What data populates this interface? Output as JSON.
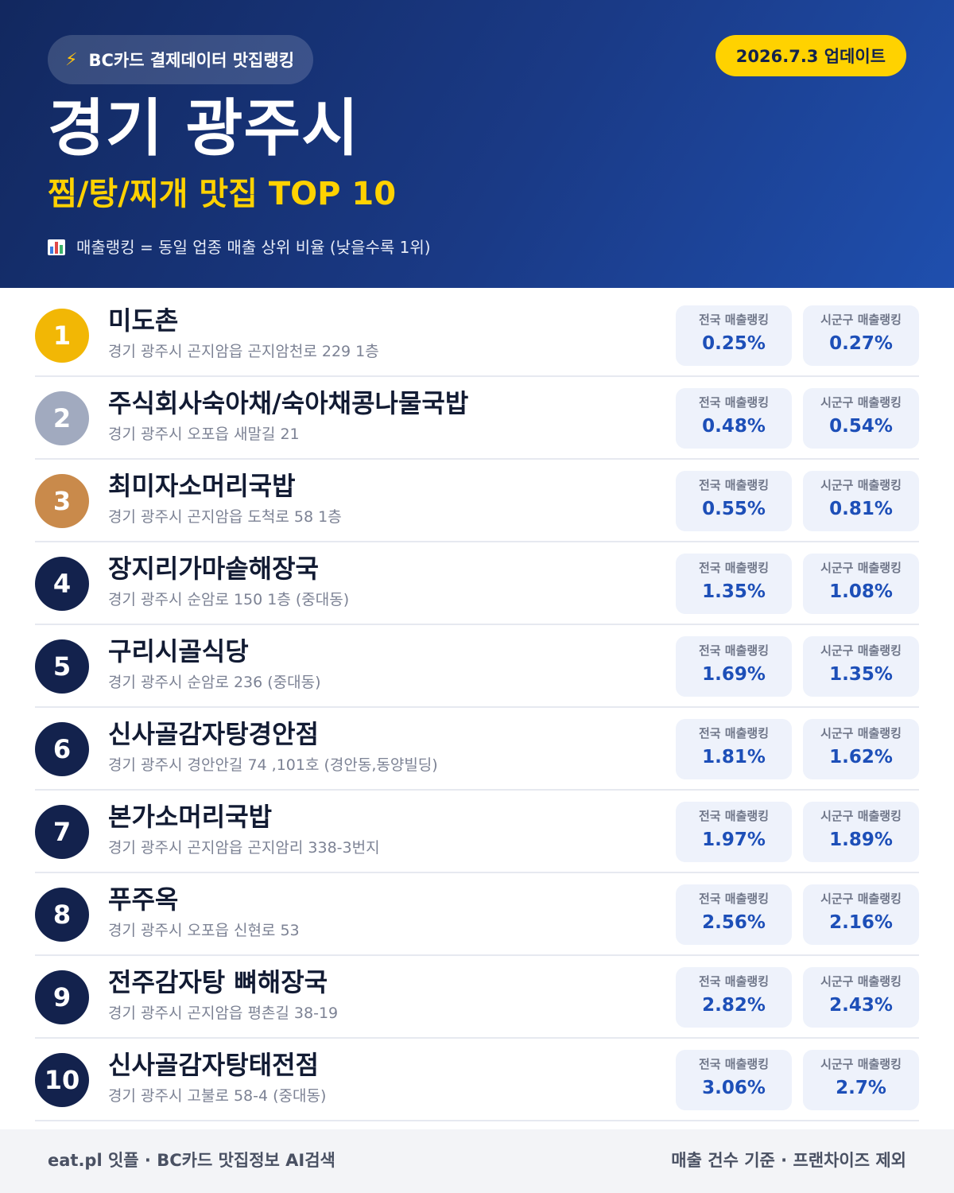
{
  "header": {
    "source_label": "BC카드 결제데이터 맛집랭킹",
    "source_icon": "lightning-bolt-icon",
    "update_label": "2026.7.3 업데이트",
    "region": "경기 광주시",
    "category_title": "찜/탕/찌개 맛집 TOP 10",
    "legend_icon": "bar-chart-icon",
    "legend_text": "매출랭킹 = 동일 업종 매출 상위 비율 (낮을수록 1위)"
  },
  "colors": {
    "header_bg_start": "#12285f",
    "header_bg_end": "#1f4fae",
    "accent_yellow": "#ffd200",
    "gold": "#f2b705",
    "silver": "#a1aabf",
    "bronze": "#c98a4b",
    "navy": "#13224d",
    "value_blue": "#1d4fb8"
  },
  "stat_labels": {
    "national": "전국 매출랭킹",
    "local": "시군구 매출랭킹"
  },
  "restaurants": [
    {
      "rank": "1",
      "name": "미도촌",
      "address": "경기 광주시 곤지암읍 곤지암천로 229 1층",
      "national": "0.25%",
      "local": "0.27%",
      "medal": "gold"
    },
    {
      "rank": "2",
      "name": "주식회사숙아채/숙아채콩나물국밥",
      "address": "경기 광주시 오포읍 새말길 21",
      "national": "0.48%",
      "local": "0.54%",
      "medal": "silver"
    },
    {
      "rank": "3",
      "name": "최미자소머리국밥",
      "address": "경기 광주시 곤지암읍 도척로 58 1층",
      "national": "0.55%",
      "local": "0.81%",
      "medal": "bronze"
    },
    {
      "rank": "4",
      "name": "장지리가마솥해장국",
      "address": "경기 광주시 순암로 150 1층 (중대동)",
      "national": "1.35%",
      "local": "1.08%",
      "medal": "navy"
    },
    {
      "rank": "5",
      "name": "구리시골식당",
      "address": "경기 광주시 순암로 236 (중대동)",
      "national": "1.69%",
      "local": "1.35%",
      "medal": "navy"
    },
    {
      "rank": "6",
      "name": "신사골감자탕경안점",
      "address": "경기 광주시 경안안길 74 ,101호 (경안동,동양빌딩)",
      "national": "1.81%",
      "local": "1.62%",
      "medal": "navy"
    },
    {
      "rank": "7",
      "name": "본가소머리국밥",
      "address": "경기 광주시 곤지암읍 곤지암리 338-3번지",
      "national": "1.97%",
      "local": "1.89%",
      "medal": "navy"
    },
    {
      "rank": "8",
      "name": "푸주옥",
      "address": "경기 광주시 오포읍 신현로 53",
      "national": "2.56%",
      "local": "2.16%",
      "medal": "navy"
    },
    {
      "rank": "9",
      "name": "전주감자탕 뼈해장국",
      "address": "경기 광주시 곤지암읍 평촌길 38-19",
      "national": "2.82%",
      "local": "2.43%",
      "medal": "navy"
    },
    {
      "rank": "10",
      "name": "신사골감자탕태전점",
      "address": "경기 광주시 고불로 58-4 (중대동)",
      "national": "3.06%",
      "local": "2.7%",
      "medal": "navy"
    }
  ],
  "footer": {
    "left": "eat.pl 잇플 · BC카드 맛집정보 AI검색",
    "right": "매출 건수 기준 · 프랜차이즈 제외"
  }
}
